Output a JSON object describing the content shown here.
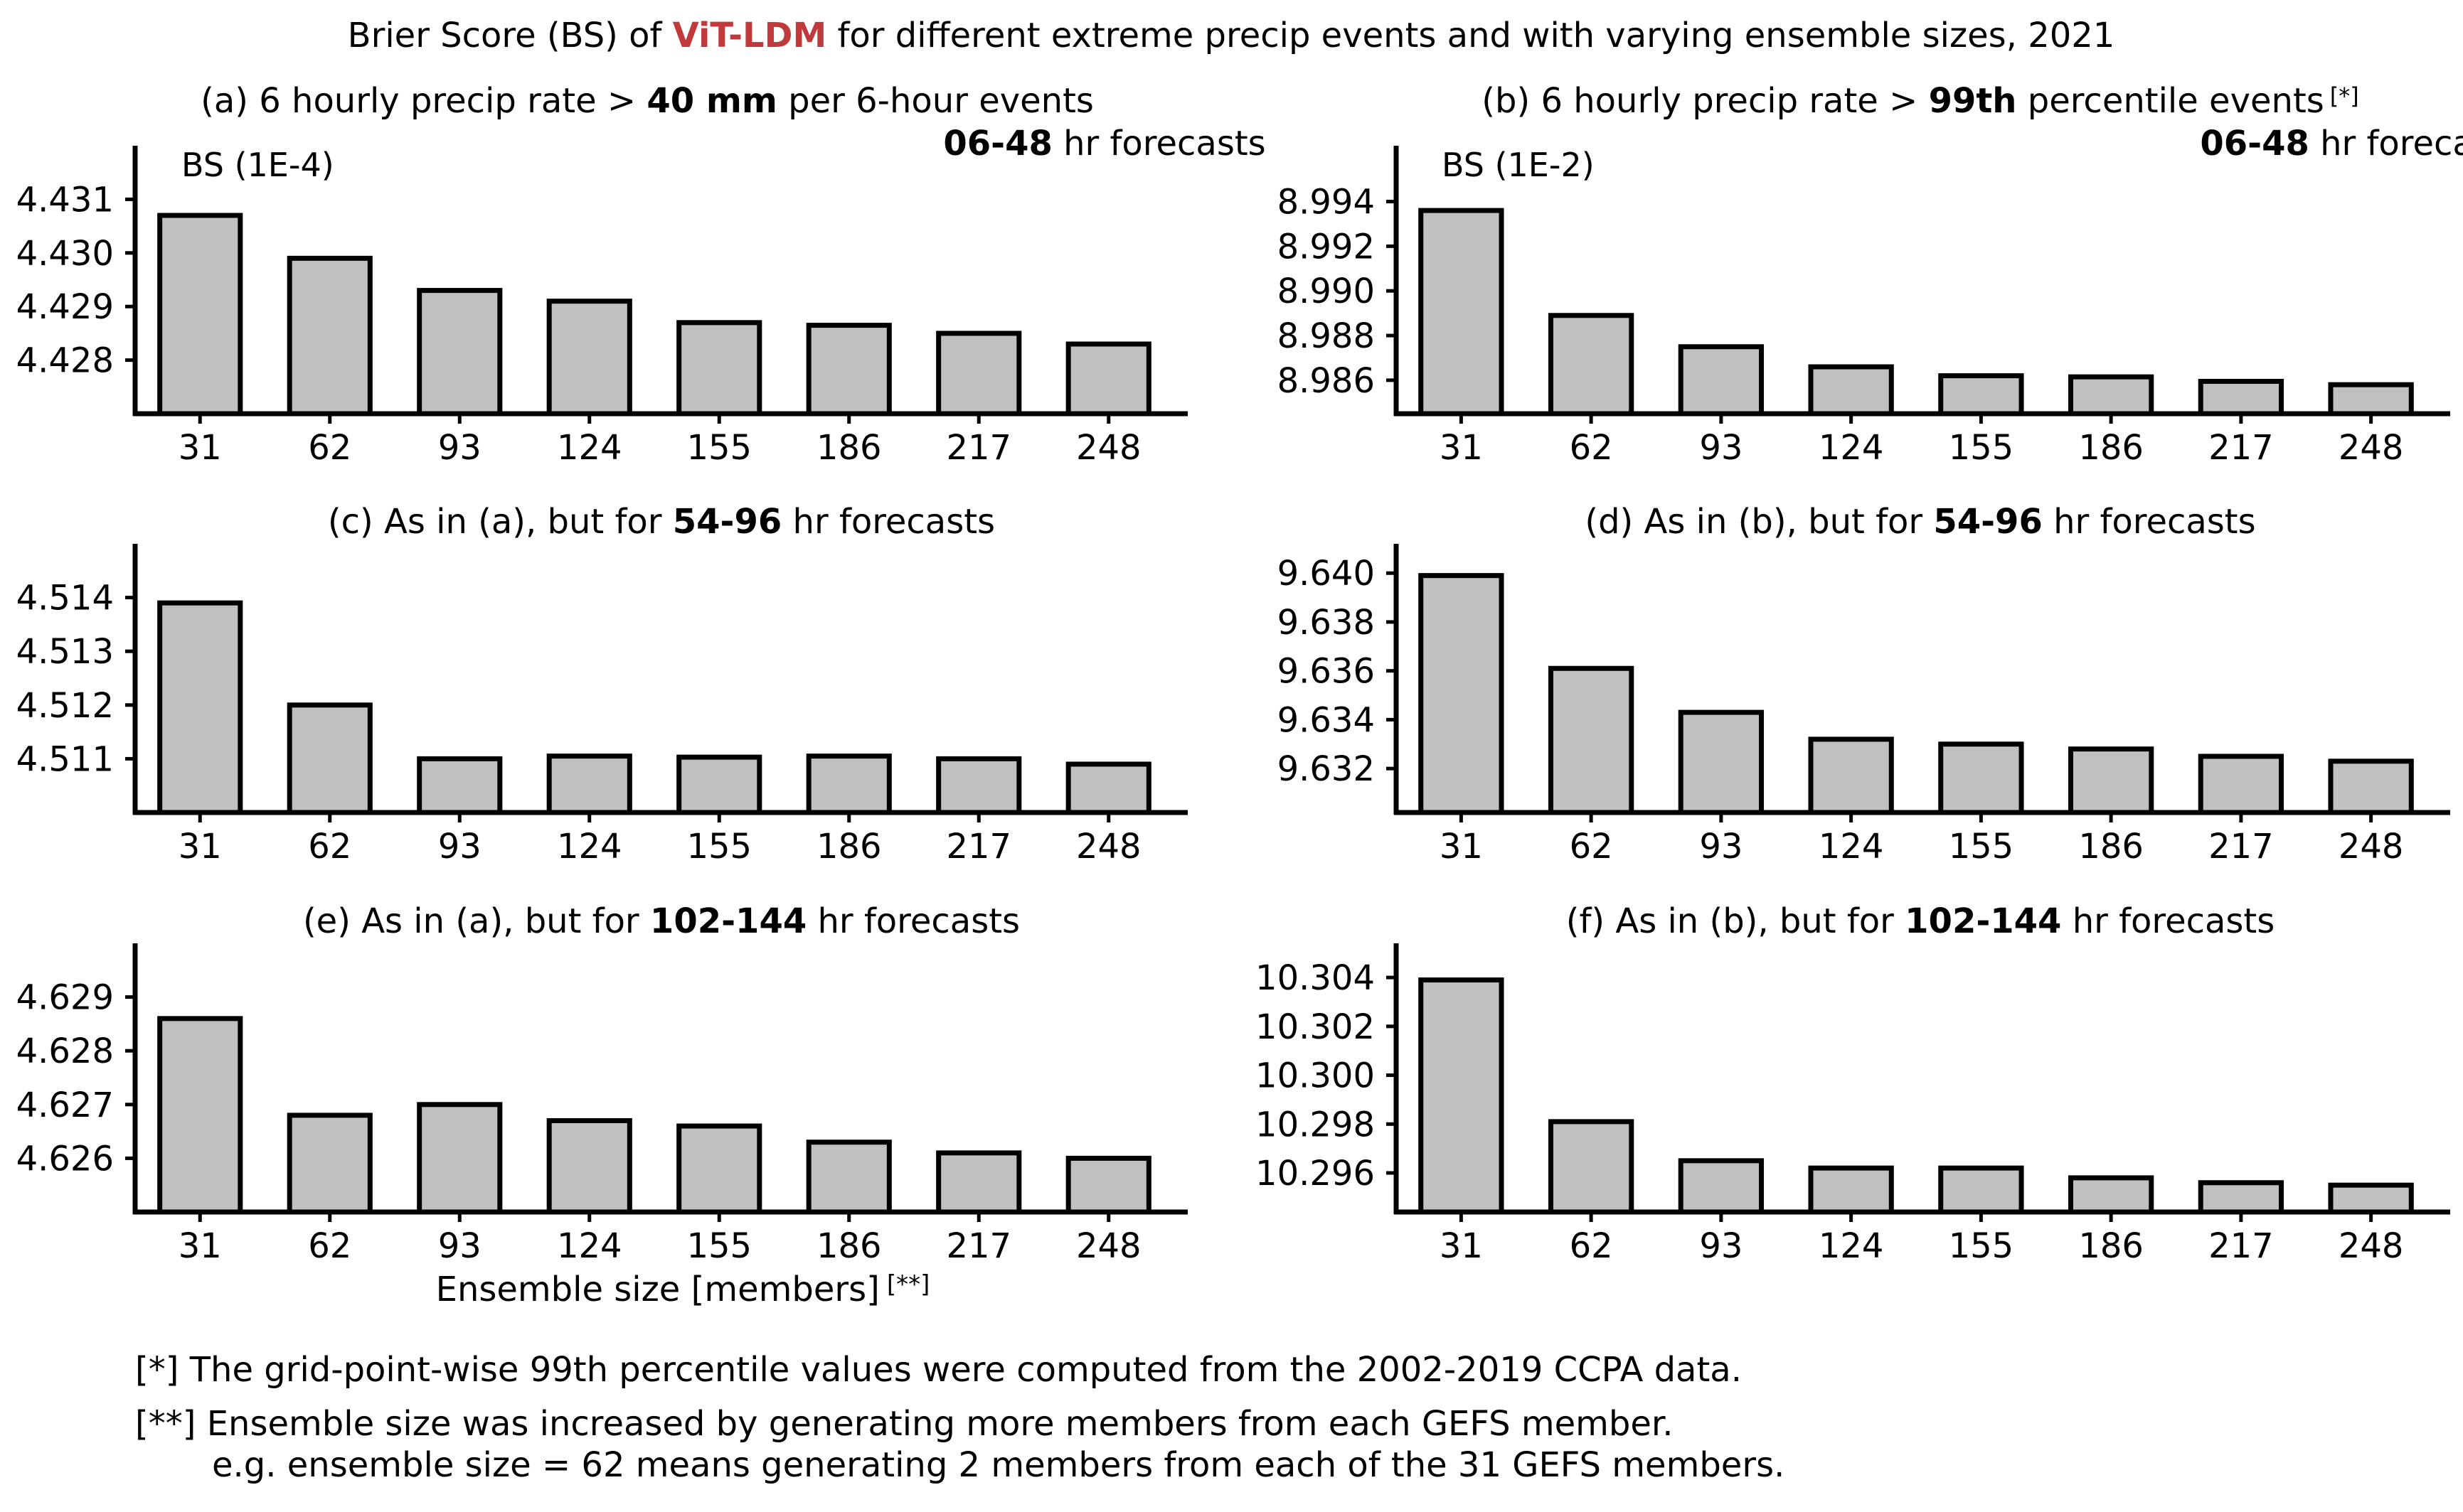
{
  "figure": {
    "title_pre": "Brier Score (BS) of ",
    "title_model": "ViT-LDM",
    "title_post": " for different extreme precip events and with varying ensemble sizes, 2021",
    "model_color": "#c0393b",
    "bar_fill": "#c0c0c0",
    "bar_edge": "#000000",
    "xlabel": "Ensemble size [members]",
    "xlabel_mark": "[**]"
  },
  "notes": {
    "note1": "[*] The grid-point-wise 99th percentile values were computed from the 2002-2019 CCPA data.",
    "note2": "[**] Ensemble size was increased by generating more members from each GEFS member.",
    "note3": "e.g. ensemble size = 62 means generating 2 members from each of the 31 GEFS members."
  },
  "chart_data": [
    {
      "type": "bar",
      "panel": "a",
      "title_parts": [
        {
          "text": "(a) 6 hourly precip rate > ",
          "bold": false
        },
        {
          "text": "40 mm",
          "bold": true
        },
        {
          "text": " per 6-hour events",
          "bold": false
        }
      ],
      "subtitle_parts": [
        {
          "text": "06-48",
          "bold": true
        },
        {
          "text": " hr forecasts",
          "bold": false
        }
      ],
      "title_mark": "",
      "unit_label": "BS (1E-4)",
      "categories": [
        "31",
        "62",
        "93",
        "124",
        "155",
        "186",
        "217",
        "248"
      ],
      "values": [
        4.4307,
        4.4299,
        4.4293,
        4.4291,
        4.4287,
        4.42865,
        4.4285,
        4.4283
      ],
      "ylim": [
        4.427,
        4.432
      ],
      "yticks": [
        4.428,
        4.429,
        4.43,
        4.431
      ],
      "ytick_labels": [
        "4.428",
        "4.429",
        "4.430",
        "4.431"
      ]
    },
    {
      "type": "bar",
      "panel": "b",
      "title_parts": [
        {
          "text": "(b) 6 hourly precip rate > ",
          "bold": false
        },
        {
          "text": "99th",
          "bold": true
        },
        {
          "text": " percentile events",
          "bold": false
        }
      ],
      "subtitle_parts": [
        {
          "text": "06-48",
          "bold": true
        },
        {
          "text": " hr forecasts",
          "bold": false
        }
      ],
      "title_mark": "[*]",
      "unit_label": "BS (1E-2)",
      "categories": [
        "31",
        "62",
        "93",
        "124",
        "155",
        "186",
        "217",
        "248"
      ],
      "values": [
        8.9936,
        8.9889,
        8.9875,
        8.9866,
        8.9862,
        8.98615,
        8.98595,
        8.9858
      ],
      "ylim": [
        8.9845,
        8.9965
      ],
      "yticks": [
        8.986,
        8.988,
        8.99,
        8.992,
        8.994
      ],
      "ytick_labels": [
        "8.986",
        "8.988",
        "8.990",
        "8.992",
        "8.994"
      ]
    },
    {
      "type": "bar",
      "panel": "c",
      "title_parts": [
        {
          "text": "(c) As in (a), but for ",
          "bold": false
        },
        {
          "text": "54-96",
          "bold": true
        },
        {
          "text": " hr forecasts",
          "bold": false
        }
      ],
      "subtitle_parts": [],
      "title_mark": "",
      "unit_label": "",
      "categories": [
        "31",
        "62",
        "93",
        "124",
        "155",
        "186",
        "217",
        "248"
      ],
      "values": [
        4.5139,
        4.512,
        4.511,
        4.51105,
        4.51103,
        4.51105,
        4.511,
        4.5109
      ],
      "ylim": [
        4.51,
        4.515
      ],
      "yticks": [
        4.511,
        4.512,
        4.513,
        4.514
      ],
      "ytick_labels": [
        "4.511",
        "4.512",
        "4.513",
        "4.514"
      ]
    },
    {
      "type": "bar",
      "panel": "d",
      "title_parts": [
        {
          "text": "(d) As in (b), but for ",
          "bold": false
        },
        {
          "text": "54-96",
          "bold": true
        },
        {
          "text": " hr forecasts",
          "bold": false
        }
      ],
      "subtitle_parts": [],
      "title_mark": "",
      "unit_label": "",
      "categories": [
        "31",
        "62",
        "93",
        "124",
        "155",
        "186",
        "217",
        "248"
      ],
      "values": [
        9.6399,
        9.6361,
        9.6343,
        9.6332,
        9.633,
        9.6328,
        9.6325,
        9.6323
      ],
      "ylim": [
        9.6302,
        9.6412
      ],
      "yticks": [
        9.632,
        9.634,
        9.636,
        9.638,
        9.64
      ],
      "ytick_labels": [
        "9.632",
        "9.634",
        "9.636",
        "9.638",
        "9.640"
      ]
    },
    {
      "type": "bar",
      "panel": "e",
      "title_parts": [
        {
          "text": "(e) As in (a), but for ",
          "bold": false
        },
        {
          "text": "102-144",
          "bold": true
        },
        {
          "text": " hr forecasts",
          "bold": false
        }
      ],
      "subtitle_parts": [],
      "title_mark": "",
      "unit_label": "",
      "categories": [
        "31",
        "62",
        "93",
        "124",
        "155",
        "186",
        "217",
        "248"
      ],
      "values": [
        4.6286,
        4.6268,
        4.627,
        4.6267,
        4.6266,
        4.6263,
        4.6261,
        4.626
      ],
      "ylim": [
        4.625,
        4.63
      ],
      "yticks": [
        4.626,
        4.627,
        4.628,
        4.629
      ],
      "ytick_labels": [
        "4.626",
        "4.627",
        "4.628",
        "4.629"
      ]
    },
    {
      "type": "bar",
      "panel": "f",
      "title_parts": [
        {
          "text": "(f) As in (b), but for ",
          "bold": false
        },
        {
          "text": "102-144",
          "bold": true
        },
        {
          "text": " hr forecasts",
          "bold": false
        }
      ],
      "subtitle_parts": [],
      "title_mark": "",
      "unit_label": "",
      "categories": [
        "31",
        "62",
        "93",
        "124",
        "155",
        "186",
        "217",
        "248"
      ],
      "values": [
        10.3039,
        10.2981,
        10.2965,
        10.2962,
        10.2962,
        10.2958,
        10.2956,
        10.2955
      ],
      "ylim": [
        10.2944,
        10.3054
      ],
      "yticks": [
        10.296,
        10.298,
        10.3,
        10.302,
        10.304
      ],
      "ytick_labels": [
        "10.296",
        "10.298",
        "10.300",
        "10.302",
        "10.304"
      ]
    }
  ]
}
